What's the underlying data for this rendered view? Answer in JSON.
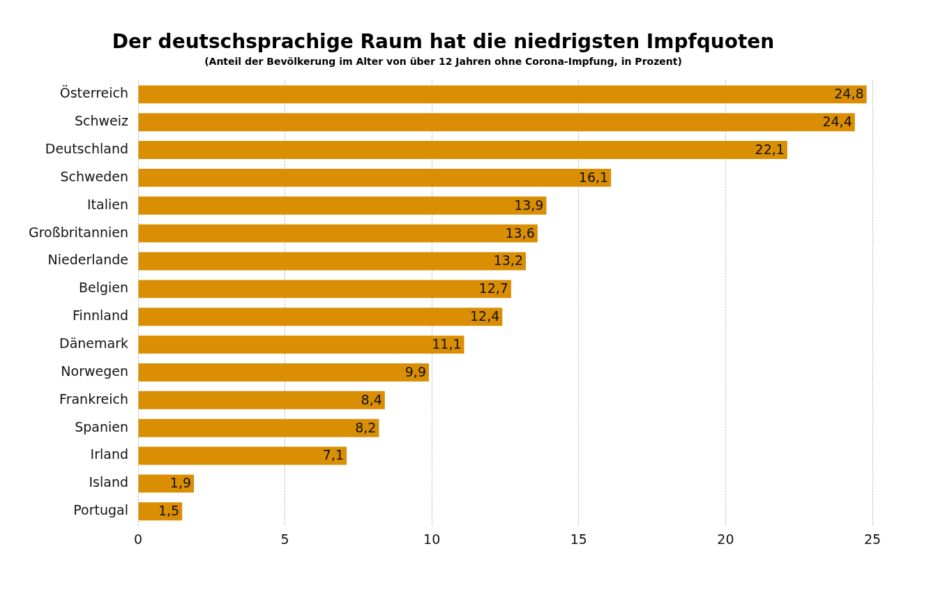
{
  "chart_data": {
    "type": "bar",
    "orientation": "horizontal",
    "title": "Der deutschsprachige Raum hat die niedrigsten Impfquoten",
    "subtitle": "(Anteil der Bevölkerung im Alter von über 12 Jahren ohne Corona-Impfung, in Prozent)",
    "categories": [
      "Österreich",
      "Schweiz",
      "Deutschland",
      "Schweden",
      "Italien",
      "Großbritannien",
      "Niederlande",
      "Belgien",
      "Finnland",
      "Dänemark",
      "Norwegen",
      "Frankreich",
      "Spanien",
      "Irland",
      "Island",
      "Portugal"
    ],
    "values": [
      24.8,
      24.4,
      22.1,
      16.1,
      13.9,
      13.6,
      13.2,
      12.7,
      12.4,
      11.1,
      9.9,
      8.4,
      8.2,
      7.1,
      1.9,
      1.5
    ],
    "value_labels": [
      "24,8",
      "24,4",
      "22,1",
      "16,1",
      "13,9",
      "13,6",
      "13,2",
      "12,7",
      "12,4",
      "11,1",
      "9,9",
      "8,4",
      "8,2",
      "7,1",
      "1,9",
      "1,5"
    ],
    "color": "#d98e04",
    "xlim": [
      0,
      25
    ],
    "xticks": [
      0,
      5,
      10,
      15,
      20,
      25
    ],
    "grid": "x",
    "legend": false
  }
}
